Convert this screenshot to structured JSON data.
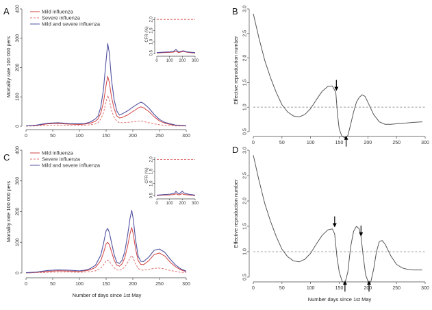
{
  "colors": {
    "mild": "#d04040",
    "severe": "#e07070",
    "total": "#5050a0",
    "r": "#555555",
    "threshold": "#888888",
    "axis": "#444444",
    "arrow": "#000000"
  },
  "xlabel_mortality": "Number of days since 1st May",
  "xlabel_reproduction": "Number days since 1st May",
  "chart_data": [
    {
      "id": "A",
      "panel_label": "A",
      "type": "line",
      "ylabel": "Mortality rate 100 000 pers",
      "xlim": [
        0,
        300
      ],
      "ylim": [
        0,
        400
      ],
      "x_ticks": [
        "0",
        "50",
        "100",
        "150",
        "200",
        "250",
        "300"
      ],
      "y_ticks": [
        "0",
        "100",
        "200",
        "300",
        "400"
      ],
      "legend": [
        "Mild influenza",
        "Severe influenza",
        "Mild and severe influenza"
      ],
      "x": [
        0,
        20,
        40,
        60,
        80,
        100,
        110,
        120,
        130,
        135,
        140,
        145,
        150,
        153,
        156,
        160,
        165,
        170,
        175,
        180,
        190,
        200,
        210,
        215,
        220,
        230,
        240,
        250,
        260,
        270,
        280,
        290,
        300
      ],
      "series": [
        {
          "name": "Mild influenza",
          "values": [
            1,
            3,
            8,
            9,
            7,
            6,
            7,
            10,
            17,
            25,
            45,
            80,
            140,
            170,
            150,
            100,
            60,
            35,
            28,
            30,
            38,
            50,
            62,
            66,
            63,
            50,
            32,
            18,
            10,
            6,
            3,
            2,
            1
          ]
        },
        {
          "name": "Severe influenza",
          "values": [
            0,
            1,
            3,
            4,
            3,
            3,
            3,
            5,
            8,
            12,
            25,
            45,
            85,
            105,
            90,
            55,
            30,
            17,
            12,
            12,
            13,
            15,
            17,
            18,
            16,
            12,
            8,
            5,
            3,
            2,
            1,
            1,
            0
          ]
        },
        {
          "name": "Mild and severe influenza",
          "values": [
            1,
            4,
            10,
            12,
            9,
            8,
            9,
            14,
            25,
            35,
            65,
            125,
            225,
            282,
            250,
            160,
            90,
            52,
            38,
            42,
            52,
            65,
            77,
            82,
            78,
            62,
            40,
            23,
            13,
            8,
            4,
            3,
            2
          ]
        }
      ],
      "inset": {
        "ylabel": "CFR (%)",
        "xlim": [
          0,
          300
        ],
        "ylim": [
          0.45,
          2.1
        ],
        "x_ticks": [
          "0",
          "100",
          "200",
          "300"
        ],
        "y_ticks": [
          "0.5",
          "1.0",
          "1.5",
          "2.0"
        ],
        "x": [
          0,
          50,
          100,
          130,
          150,
          160,
          170,
          190,
          210,
          230,
          260,
          300
        ],
        "series": [
          {
            "name": "Mild influenza",
            "values": [
              0.5,
              0.52,
              0.53,
              0.54,
              0.58,
              0.55,
              0.52,
              0.55,
              0.57,
              0.54,
              0.52,
              0.5
            ]
          },
          {
            "name": "Severe influenza",
            "values": [
              2.0,
              2.0,
              2.0,
              2.0,
              2.0,
              2.0,
              2.0,
              2.0,
              2.0,
              2.0,
              2.0,
              2.0
            ]
          },
          {
            "name": "Mild and severe influenza",
            "values": [
              0.52,
              0.54,
              0.55,
              0.57,
              0.66,
              0.6,
              0.55,
              0.58,
              0.6,
              0.56,
              0.54,
              0.52
            ]
          }
        ]
      }
    },
    {
      "id": "B",
      "panel_label": "B",
      "type": "line",
      "ylabel": "Effective reproduction number",
      "xlim": [
        0,
        300
      ],
      "ylim": [
        0.5,
        3.0
      ],
      "x_ticks": [
        "0",
        "50",
        "100",
        "150",
        "200",
        "250",
        "300"
      ],
      "y_ticks": [
        "0.5",
        "1.0",
        "1.5",
        "2.0",
        "2.5",
        "3.0"
      ],
      "threshold": 1.0,
      "x": [
        0,
        10,
        20,
        30,
        40,
        50,
        60,
        70,
        80,
        90,
        100,
        110,
        120,
        130,
        138,
        144,
        147,
        150,
        155,
        160,
        165,
        170,
        175,
        180,
        185,
        190,
        195,
        200,
        210,
        220,
        230,
        240,
        250,
        260,
        270,
        280,
        295
      ],
      "series": [
        {
          "name": "Effective reproduction number",
          "values": [
            2.9,
            2.4,
            1.95,
            1.6,
            1.3,
            1.05,
            0.9,
            0.82,
            0.8,
            0.85,
            0.97,
            1.15,
            1.32,
            1.42,
            1.43,
            1.3,
            0.85,
            0.55,
            0.4,
            0.38,
            0.42,
            0.65,
            0.9,
            1.1,
            1.2,
            1.25,
            1.22,
            1.1,
            0.85,
            0.7,
            0.65,
            0.65,
            0.66,
            0.67,
            0.68,
            0.69,
            0.7
          ]
        }
      ],
      "arrows": [
        {
          "x": 145,
          "y": 1.33,
          "direction": "down"
        },
        {
          "x": 162,
          "y": 0.42,
          "direction": "up"
        }
      ]
    },
    {
      "id": "C",
      "panel_label": "C",
      "type": "line",
      "ylabel": "Mortality rate 100 000 pers",
      "xlim": [
        0,
        300
      ],
      "ylim": [
        0,
        400
      ],
      "x_ticks": [
        "0",
        "50",
        "100",
        "150",
        "200",
        "250",
        "300"
      ],
      "y_ticks": [
        "0",
        "100",
        "200",
        "300",
        "400"
      ],
      "legend": [
        "Mild influenza",
        "Severe influenza",
        "Mild and severe influenza"
      ],
      "x": [
        0,
        20,
        40,
        60,
        80,
        100,
        110,
        120,
        130,
        140,
        145,
        150,
        153,
        156,
        160,
        165,
        170,
        175,
        180,
        185,
        190,
        195,
        198,
        201,
        205,
        210,
        215,
        220,
        230,
        240,
        250,
        260,
        270,
        280,
        290,
        300
      ],
      "series": [
        {
          "name": "Mild influenza",
          "values": [
            0,
            2,
            5,
            7,
            6,
            5,
            7,
            10,
            18,
            40,
            65,
            95,
            100,
            92,
            70,
            42,
            25,
            22,
            30,
            50,
            85,
            130,
            148,
            125,
            80,
            40,
            28,
            27,
            40,
            60,
            65,
            55,
            35,
            20,
            10,
            4
          ]
        },
        {
          "name": "Severe influenza",
          "values": [
            0,
            1,
            2,
            3,
            3,
            2,
            3,
            4,
            7,
            16,
            26,
            40,
            42,
            38,
            28,
            17,
            10,
            9,
            12,
            20,
            33,
            50,
            57,
            48,
            30,
            15,
            10,
            9,
            12,
            15,
            16,
            13,
            8,
            5,
            2,
            1
          ]
        },
        {
          "name": "Mild and severe influenza",
          "values": [
            1,
            3,
            8,
            10,
            9,
            7,
            9,
            14,
            25,
            58,
            95,
            138,
            145,
            132,
            100,
            60,
            35,
            31,
            42,
            70,
            120,
            180,
            204,
            173,
            110,
            55,
            38,
            37,
            52,
            74,
            78,
            67,
            45,
            26,
            13,
            6
          ]
        }
      ],
      "inset": {
        "ylabel": "CFR (%)",
        "xlim": [
          0,
          300
        ],
        "ylim": [
          0.45,
          2.1
        ],
        "x_ticks": [
          "0",
          "100",
          "200",
          "300"
        ],
        "y_ticks": [
          "0.5",
          "1.0",
          "1.5",
          "2.0"
        ],
        "x": [
          0,
          50,
          100,
          140,
          150,
          160,
          175,
          190,
          200,
          210,
          230,
          260,
          300
        ],
        "series": [
          {
            "name": "Mild influenza",
            "values": [
              0.5,
              0.52,
              0.53,
              0.55,
              0.58,
              0.55,
              0.53,
              0.56,
              0.58,
              0.55,
              0.54,
              0.52,
              0.5
            ]
          },
          {
            "name": "Severe influenza",
            "values": [
              2.0,
              2.0,
              2.0,
              2.0,
              2.0,
              2.0,
              2.0,
              2.0,
              2.0,
              2.0,
              2.0,
              2.0,
              2.0
            ]
          },
          {
            "name": "Mild and severe influenza",
            "values": [
              0.52,
              0.54,
              0.56,
              0.6,
              0.68,
              0.62,
              0.57,
              0.64,
              0.68,
              0.62,
              0.58,
              0.55,
              0.52
            ]
          }
        ]
      }
    },
    {
      "id": "D",
      "panel_label": "D",
      "type": "line",
      "ylabel": "Effective reproduction number",
      "xlim": [
        0,
        300
      ],
      "ylim": [
        0.5,
        3.0
      ],
      "x_ticks": [
        "0",
        "50",
        "100",
        "150",
        "200",
        "250",
        "300"
      ],
      "y_ticks": [
        "0.5",
        "1.0",
        "1.5",
        "2.0",
        "2.5",
        "3.0"
      ],
      "threshold": 1.0,
      "x": [
        0,
        10,
        20,
        30,
        40,
        50,
        60,
        70,
        80,
        90,
        100,
        110,
        120,
        130,
        138,
        142,
        146,
        150,
        155,
        160,
        165,
        170,
        175,
        180,
        185,
        188,
        192,
        196,
        200,
        205,
        210,
        215,
        220,
        225,
        230,
        240,
        250,
        260,
        270,
        280,
        295
      ],
      "series": [
        {
          "name": "Effective reproduction number",
          "values": [
            2.9,
            2.4,
            1.95,
            1.6,
            1.3,
            1.05,
            0.9,
            0.82,
            0.8,
            0.85,
            0.97,
            1.15,
            1.32,
            1.43,
            1.45,
            1.35,
            0.9,
            0.6,
            0.42,
            0.38,
            0.6,
            1.1,
            1.4,
            1.5,
            1.45,
            1.3,
            0.9,
            0.55,
            0.42,
            0.4,
            0.65,
            1.0,
            1.2,
            1.22,
            1.15,
            0.92,
            0.75,
            0.68,
            0.65,
            0.64,
            0.64
          ]
        }
      ],
      "arrows": [
        {
          "x": 142,
          "y": 1.48,
          "direction": "down"
        },
        {
          "x": 188,
          "y": 1.3,
          "direction": "down"
        },
        {
          "x": 160,
          "y": 0.43,
          "direction": "up"
        },
        {
          "x": 202,
          "y": 0.43,
          "direction": "up"
        }
      ]
    }
  ]
}
